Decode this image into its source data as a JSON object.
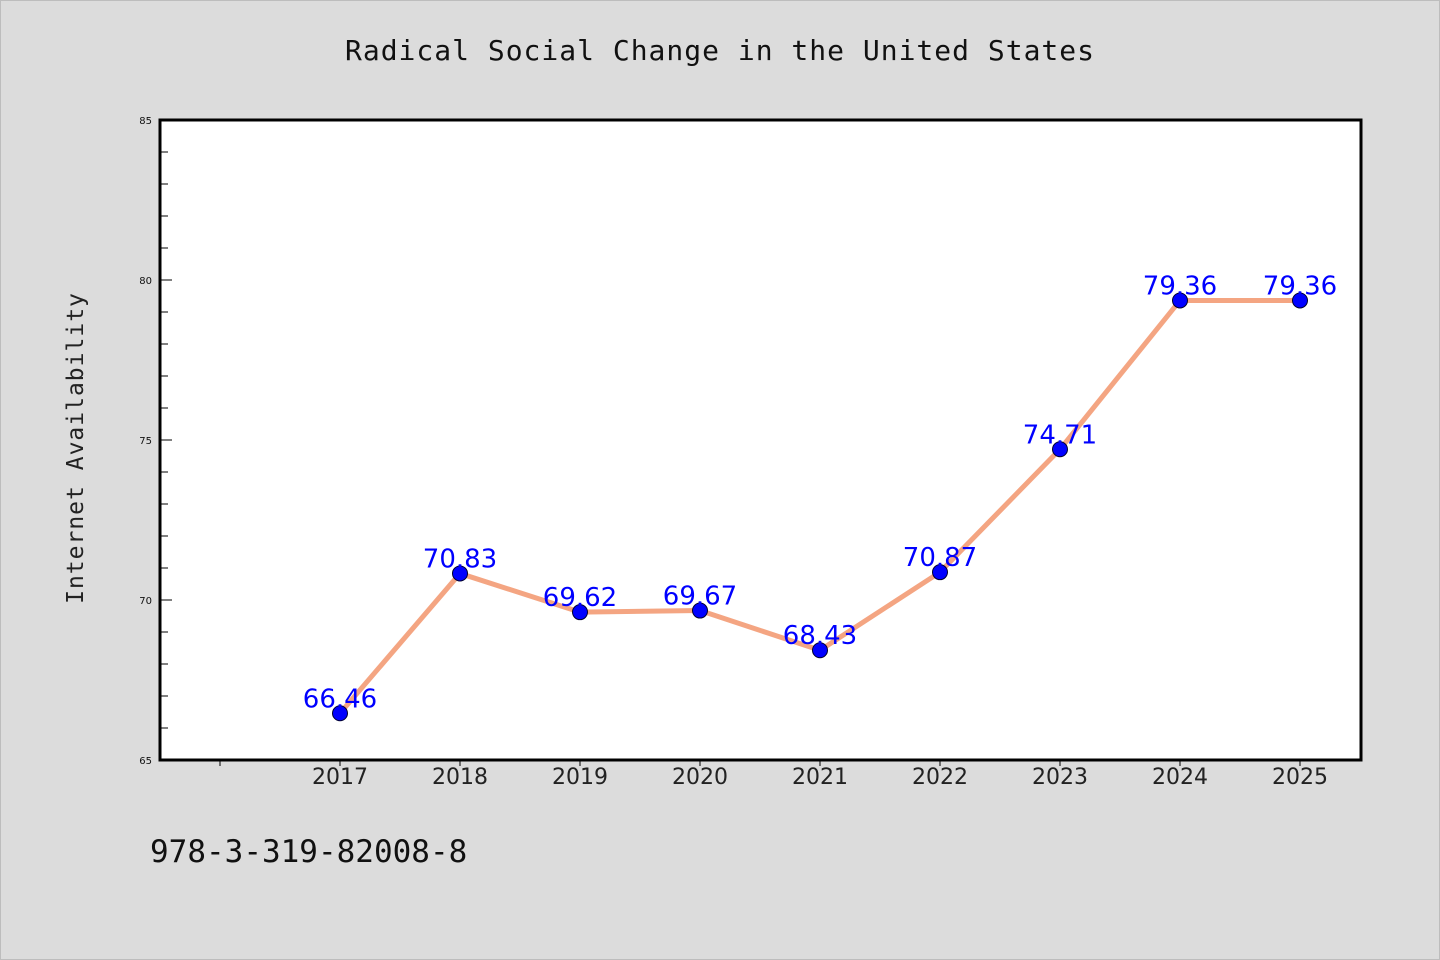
{
  "chart_data": {
    "type": "line",
    "title": "Radical Social Change in the United States",
    "xlabel": "",
    "ylabel": "Internet Availability",
    "categories": [
      "2017",
      "2018",
      "2019",
      "2020",
      "2021",
      "2022",
      "2023",
      "2024",
      "2025"
    ],
    "series": [
      {
        "values": [
          66.46,
          70.83,
          69.62,
          69.67,
          68.43,
          70.87,
          74.71,
          79.36,
          79.36
        ],
        "data_labels": [
          "66.46",
          "70.83",
          "69.62",
          "69.67",
          "68.43",
          "70.87",
          "74.71",
          "79.36",
          "79.36"
        ]
      }
    ],
    "ylim": [
      65,
      85
    ],
    "yticks": [
      "65",
      "70",
      "75",
      "80",
      "85"
    ],
    "grid": false,
    "legend": "none",
    "colors": {
      "line": "#f4a582",
      "marker": "#0000ff",
      "data_label": "#0000ff",
      "plot_background": "#ffffff",
      "page_background": "#dcdcdc"
    }
  },
  "footer": {
    "isbn": "978-3-319-82008-8"
  }
}
